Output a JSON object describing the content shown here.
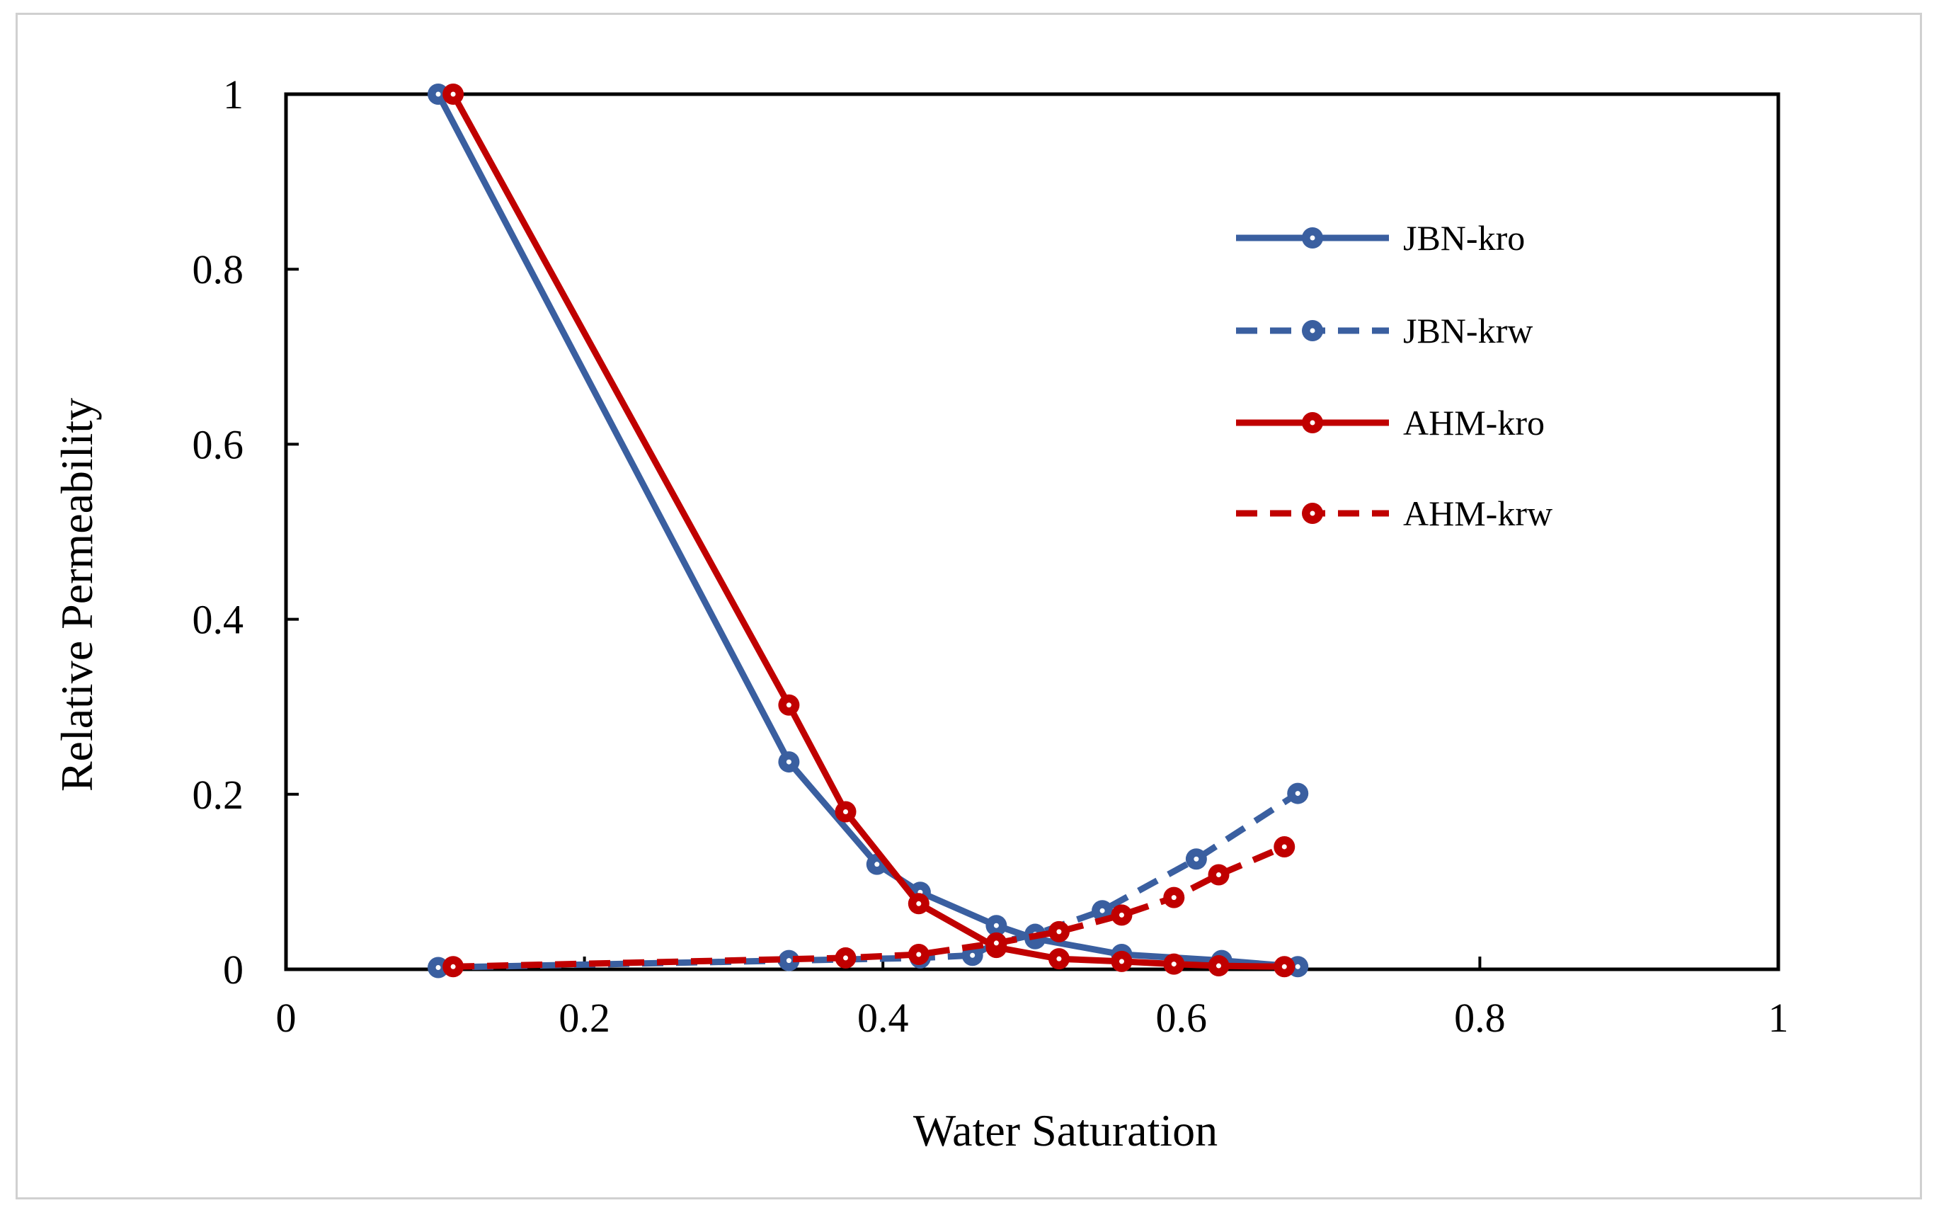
{
  "chart_data": {
    "type": "line",
    "title": "",
    "xlabel": "Water Saturation",
    "ylabel": "Relative Permeability",
    "xlim": [
      0,
      1
    ],
    "ylim": [
      0,
      1
    ],
    "grid": false,
    "legend_position": "top-right",
    "x_ticks": [
      "0",
      "0.2",
      "0.4",
      "0.6",
      "0.8",
      "1"
    ],
    "y_ticks": [
      "0",
      "0.2",
      "0.4",
      "0.6",
      "0.8",
      "1"
    ],
    "series": [
      {
        "name": "JBN-kro",
        "color": "#3a5fa0",
        "dashed": false,
        "x": [
          0.102,
          0.337,
          0.396,
          0.425,
          0.476,
          0.502,
          0.56,
          0.627,
          0.678
        ],
        "y": [
          1.0,
          0.237,
          0.12,
          0.088,
          0.05,
          0.035,
          0.017,
          0.01,
          0.003
        ]
      },
      {
        "name": "JBN-krw",
        "color": "#3a5fa0",
        "dashed": true,
        "x": [
          0.102,
          0.337,
          0.425,
          0.46,
          0.476,
          0.502,
          0.547,
          0.61,
          0.678
        ],
        "y": [
          0.002,
          0.01,
          0.013,
          0.016,
          0.03,
          0.04,
          0.067,
          0.126,
          0.201
        ]
      },
      {
        "name": "AHM-kro",
        "color": "#c00000",
        "dashed": false,
        "x": [
          0.112,
          0.337,
          0.375,
          0.424,
          0.476,
          0.518,
          0.56,
          0.595,
          0.625,
          0.669
        ],
        "y": [
          1.0,
          0.302,
          0.18,
          0.075,
          0.025,
          0.012,
          0.009,
          0.006,
          0.004,
          0.003
        ]
      },
      {
        "name": "AHM-krw",
        "color": "#c00000",
        "dashed": true,
        "x": [
          0.112,
          0.375,
          0.424,
          0.476,
          0.518,
          0.56,
          0.595,
          0.625,
          0.669
        ],
        "y": [
          0.003,
          0.013,
          0.017,
          0.03,
          0.043,
          0.062,
          0.082,
          0.108,
          0.14
        ]
      }
    ]
  }
}
